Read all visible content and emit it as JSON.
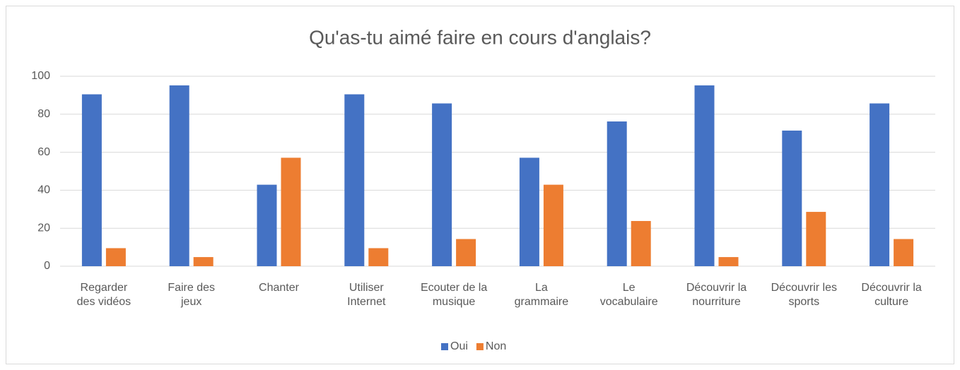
{
  "chart_data": {
    "type": "bar",
    "title": "Qu'as-tu aimé faire en cours d'anglais?",
    "categories": [
      "Regarder des vidéos",
      "Faire des jeux",
      "Chanter",
      "Utiliser Internet",
      "Ecouter de la musique",
      "La grammaire",
      "Le vocabulaire",
      "Découvrir la nourriture",
      "Découvrir les sports",
      "Découvrir la culture"
    ],
    "series": [
      {
        "name": "Oui",
        "color": "#4472c4",
        "values": [
          90.5,
          95.2,
          42.9,
          90.5,
          85.7,
          57.1,
          76.2,
          95.2,
          71.4,
          85.7
        ]
      },
      {
        "name": "Non",
        "color": "#ed7d31",
        "values": [
          9.5,
          4.8,
          57.1,
          9.5,
          14.3,
          42.9,
          23.8,
          4.8,
          28.6,
          14.3
        ]
      }
    ],
    "ylim": [
      0,
      100
    ],
    "yticks": [
      0,
      20,
      40,
      60,
      80,
      100
    ],
    "grid": true,
    "legend": "bottom"
  }
}
